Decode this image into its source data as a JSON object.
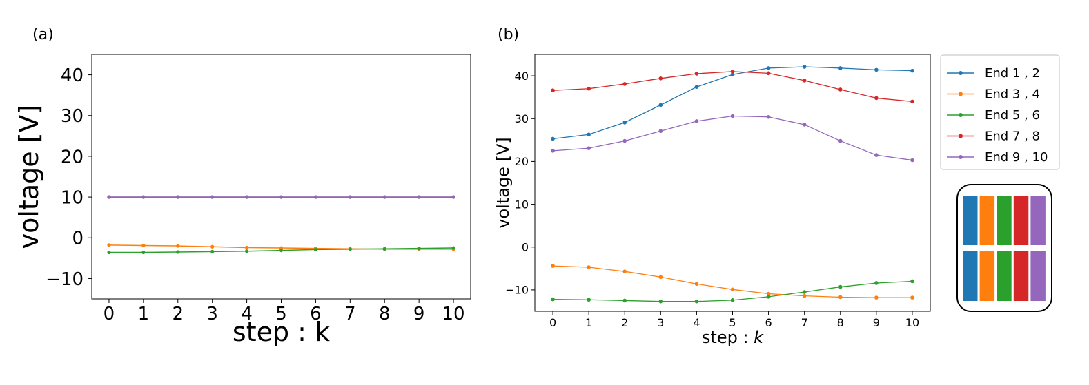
{
  "chart_data": [
    {
      "panel_label": "(a)",
      "type": "line",
      "xlabel": "step : k",
      "ylabel": "voltage [V]",
      "x": [
        0,
        1,
        2,
        3,
        4,
        5,
        6,
        7,
        8,
        9,
        10
      ],
      "xticks": [
        "0",
        "1",
        "2",
        "3",
        "4",
        "5",
        "6",
        "7",
        "8",
        "9",
        "10"
      ],
      "xlim": [
        -0.5,
        10.5
      ],
      "ylim": [
        -15,
        45
      ],
      "yticks": [
        -10,
        0,
        10,
        20,
        30,
        40
      ],
      "ytick_labels": [
        "−10",
        "0",
        "10",
        "20",
        "30",
        "40"
      ],
      "grid": false,
      "series": [
        {
          "name": "End 1 , 2",
          "color": "#1f77b4",
          "values": [
            10,
            10,
            10,
            10,
            10,
            10,
            10,
            10,
            10,
            10,
            10
          ]
        },
        {
          "name": "End 7 , 8",
          "color": "#d62728",
          "values": [
            10,
            10,
            10,
            10,
            10,
            10,
            10,
            10,
            10,
            10,
            10
          ]
        },
        {
          "name": "End 9 , 10",
          "color": "#9467bd",
          "values": [
            10,
            10,
            10,
            10,
            10,
            10,
            10,
            10,
            10,
            10,
            10
          ]
        },
        {
          "name": "End 3 , 4",
          "color": "#ff7f0e",
          "values": [
            -1.8,
            -1.9,
            -2.0,
            -2.2,
            -2.4,
            -2.5,
            -2.6,
            -2.7,
            -2.8,
            -2.8,
            -2.8
          ]
        },
        {
          "name": "End 5 , 6",
          "color": "#2ca02c",
          "values": [
            -3.6,
            -3.6,
            -3.5,
            -3.4,
            -3.3,
            -3.1,
            -2.9,
            -2.8,
            -2.7,
            -2.6,
            -2.5
          ]
        }
      ]
    },
    {
      "panel_label": "(b)",
      "type": "line",
      "xlabel_prefix": "step : ",
      "xlabel_var": "k",
      "ylabel": "voltage [V]",
      "x": [
        0,
        1,
        2,
        3,
        4,
        5,
        6,
        7,
        8,
        9,
        10
      ],
      "xticks": [
        "0",
        "1",
        "2",
        "3",
        "4",
        "5",
        "6",
        "7",
        "8",
        "9",
        "10"
      ],
      "xlim": [
        -0.5,
        10.5
      ],
      "ylim": [
        -15,
        45
      ],
      "yticks": [
        -10,
        0,
        10,
        20,
        30,
        40
      ],
      "ytick_labels": [
        "−10",
        "0",
        "10",
        "20",
        "30",
        "40"
      ],
      "grid": false,
      "legend_position": "outside-right",
      "series": [
        {
          "name": "End 1 , 2",
          "color": "#1f77b4",
          "values": [
            25.3,
            26.3,
            29.1,
            33.2,
            37.4,
            40.3,
            41.8,
            42.1,
            41.8,
            41.4,
            41.2
          ]
        },
        {
          "name": "End 3 , 4",
          "color": "#ff7f0e",
          "values": [
            -4.4,
            -4.7,
            -5.7,
            -7.0,
            -8.6,
            -9.9,
            -10.9,
            -11.4,
            -11.7,
            -11.8,
            -11.8
          ]
        },
        {
          "name": "End 5 , 6",
          "color": "#2ca02c",
          "values": [
            -12.2,
            -12.3,
            -12.5,
            -12.7,
            -12.7,
            -12.4,
            -11.6,
            -10.5,
            -9.3,
            -8.4,
            -8.0
          ]
        },
        {
          "name": "End 7 , 8",
          "color": "#d62728",
          "values": [
            36.6,
            37.0,
            38.1,
            39.4,
            40.5,
            41.0,
            40.6,
            38.9,
            36.8,
            34.8,
            34.0
          ]
        },
        {
          "name": "End 9 , 10",
          "color": "#9467bd",
          "values": [
            22.5,
            23.1,
            24.8,
            27.1,
            29.4,
            30.6,
            30.4,
            28.6,
            24.8,
            21.5,
            20.3
          ]
        }
      ]
    }
  ],
  "electrode_diagram": {
    "colors": [
      "#1f77b4",
      "#ff7f0e",
      "#2ca02c",
      "#d62728",
      "#9467bd"
    ]
  }
}
